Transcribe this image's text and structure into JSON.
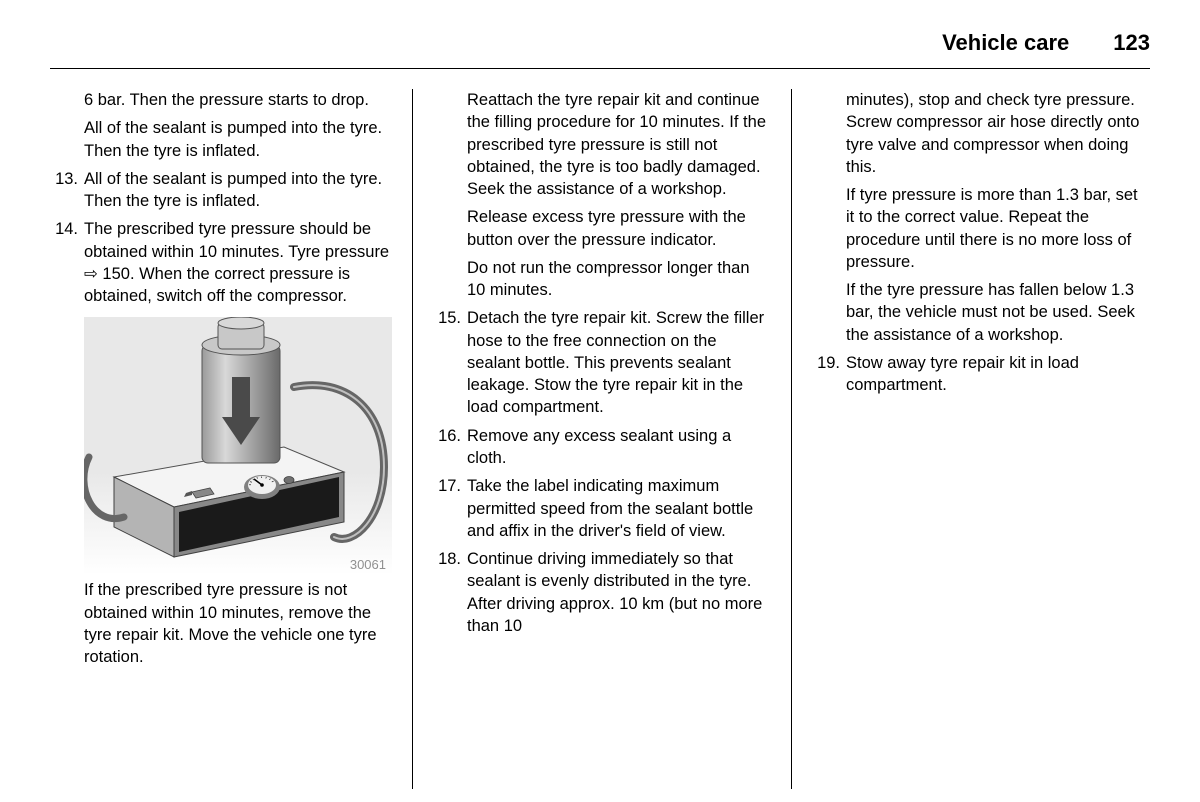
{
  "header": {
    "section_title": "Vehicle care",
    "page_number": "123"
  },
  "col1": {
    "p_pre1": "6 bar. Then the pressure starts to drop.",
    "p_pre2": "All of the sealant is pumped into the tyre. Then the tyre is inflated.",
    "items": [
      {
        "n": "13.",
        "t": "All of the sealant is pumped into the tyre. Then the tyre is inflated."
      },
      {
        "n": "14.",
        "t": "The prescribed tyre pressure should be obtained within 10 minutes. Tyre pressure ⇨ 150. When the correct pressure is obtained, switch off the compressor."
      }
    ],
    "figure_id": "30061",
    "p_after_fig": "If the prescribed tyre pressure is not obtained within 10 minutes, remove the tyre repair kit. Move the vehicle one tyre rotation."
  },
  "col2": {
    "p_top1": "Reattach the tyre repair kit and continue the filling procedure for 10 minutes. If the prescribed tyre pressure is still not obtained, the tyre is too badly damaged. Seek the assistance of a workshop.",
    "p_top2": "Release excess tyre pressure with the button over the pressure indicator.",
    "p_top3": "Do not run the compressor longer than 10 minutes.",
    "items": [
      {
        "n": "15.",
        "t": "Detach the tyre repair kit. Screw the filler hose to the free connection on the sealant bottle. This prevents sealant leakage. Stow the tyre repair kit in the load compartment."
      },
      {
        "n": "16.",
        "t": "Remove any excess sealant using a cloth."
      },
      {
        "n": "17.",
        "t": "Take the label indicating maximum permitted speed from the sealant bottle and affix in the driver's field of view."
      },
      {
        "n": "18.",
        "t": "Continue driving immediately so that sealant is evenly distributed in the tyre. After driving approx. 10 km (but no more than 10"
      }
    ]
  },
  "col3": {
    "p_top1": "minutes), stop and check tyre pressure. Screw compressor air hose directly onto tyre valve and compressor when doing this.",
    "p_top2": "If tyre pressure is more than 1.3 bar, set it to the correct value. Repeat the procedure until there is no more loss of pressure.",
    "p_top3": "If the tyre pressure has fallen below 1.3 bar, the vehicle must not be used. Seek the assistance of a workshop.",
    "items": [
      {
        "n": "19.",
        "t": "Stow away tyre repair kit in load compartment."
      }
    ]
  },
  "figure": {
    "bg_top": "#e8e8e8",
    "bg_bot": "#ffffff",
    "box_top": "#f4f4f4",
    "box_front": "#b4b4b4",
    "box_side": "#888888",
    "panel": "#1a1a1a",
    "can_body": "#9a9a9a",
    "can_light": "#d8d8d8",
    "can_top": "#c8c8c8",
    "arrow": "#4a4a4a",
    "gauge_face": "#f0f0f0",
    "gauge_rim": "#808080",
    "tube": "#666666",
    "tube_highlight": "#c0c0c0"
  }
}
